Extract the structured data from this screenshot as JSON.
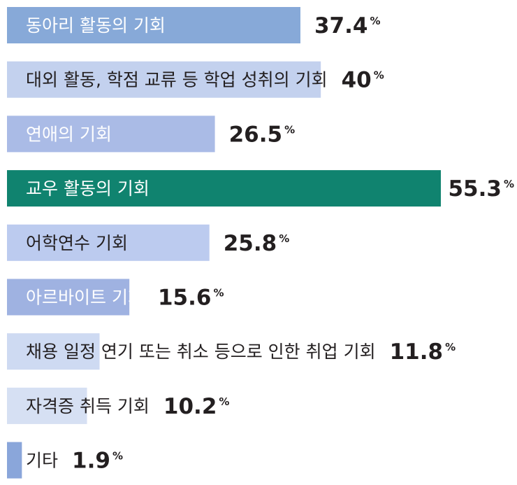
{
  "chart_data": {
    "type": "bar",
    "orientation": "horizontal",
    "unit": "%",
    "categories": [
      "동아리 활동의 기회",
      "대외 활동, 학점 교류 등 학업 성취의 기회",
      "연애의 기회",
      "교우 활동의 기회",
      "어학연수 기회",
      "아르바이트 기회",
      "채용 일정 연기 또는 취소 등으로 인한 취업 기회",
      "자격증 취득 기회",
      "기타"
    ],
    "values": [
      37.4,
      40,
      26.5,
      55.3,
      25.8,
      15.6,
      11.8,
      10.2,
      1.9
    ],
    "value_labels": [
      "37.4",
      "40",
      "26.5",
      "55.3",
      "25.8",
      "15.6",
      "11.8",
      "10.2",
      "1.9"
    ],
    "bar_colors": [
      "#87a9d8",
      "#c3d1ee",
      "#aabbe6",
      "#10836f",
      "#bccbef",
      "#9fb2e1",
      "#cedaf2",
      "#d6e0f3",
      "#8aa6da"
    ],
    "label_colors": [
      "#ffffff",
      "#231f20",
      "#ffffff",
      "#ffffff",
      "#231f20",
      "#ffffff",
      "#231f20",
      "#231f20",
      "#231f20"
    ],
    "highlight_index": 3,
    "xlim": [
      0,
      55.3
    ]
  }
}
